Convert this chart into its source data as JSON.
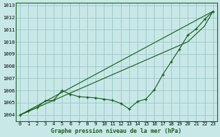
{
  "xlabel": "Graphe pression niveau de la mer (hPa)",
  "background_color": "#c8e8e8",
  "grid_color": "#a0c8c8",
  "line_color": "#1a5c1a",
  "x_ticks": [
    0,
    1,
    2,
    3,
    4,
    5,
    6,
    7,
    8,
    9,
    10,
    11,
    12,
    13,
    14,
    15,
    16,
    17,
    18,
    19,
    20,
    21,
    22,
    23
  ],
  "ylim": [
    1003.5,
    1013.2
  ],
  "y_ticks": [
    1004,
    1005,
    1006,
    1007,
    1008,
    1009,
    1010,
    1011,
    1012,
    1013
  ],
  "line_straight1": [
    1004.0,
    1004.37,
    1004.74,
    1005.11,
    1005.48,
    1005.85,
    1006.22,
    1006.59,
    1006.96,
    1007.33,
    1007.7,
    1008.07,
    1008.44,
    1008.81,
    1009.18,
    1009.55,
    1009.92,
    1010.29,
    1010.66,
    1011.03,
    1011.4,
    1011.77,
    1012.14,
    1012.5
  ],
  "line_straight2": [
    1004.0,
    1004.3,
    1004.6,
    1004.9,
    1005.2,
    1005.5,
    1005.8,
    1006.1,
    1006.4,
    1006.7,
    1007.0,
    1007.3,
    1007.6,
    1007.9,
    1008.2,
    1008.5,
    1008.8,
    1009.1,
    1009.4,
    1009.7,
    1010.0,
    1010.65,
    1011.3,
    1012.5
  ],
  "marker_line": [
    1004.0,
    1004.3,
    1004.6,
    1005.15,
    1005.2,
    1006.0,
    1005.7,
    1005.5,
    1005.45,
    1005.4,
    1005.3,
    1005.2,
    1004.95,
    1004.5,
    1005.1,
    1005.3,
    1006.05,
    1007.3,
    1008.35,
    1009.4,
    1010.55,
    1011.05,
    1011.85,
    1012.5
  ]
}
